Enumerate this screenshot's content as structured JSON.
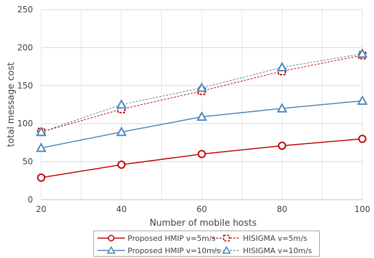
{
  "chart_data": {
    "type": "line",
    "title": "",
    "xlabel": "Number of mobile hosts",
    "ylabel": "total message cost",
    "x": [
      20,
      40,
      60,
      80,
      100
    ],
    "xticks": [
      "20",
      "40",
      "60",
      "80",
      "100"
    ],
    "yticks": [
      "0",
      "50",
      "100",
      "150",
      "200",
      "250"
    ],
    "xlim": [
      20,
      100
    ],
    "ylim": [
      0,
      250
    ],
    "grid": true,
    "legend_position": "bottom",
    "series": [
      {
        "name": "Proposed HMIP v=5m/s",
        "values": [
          29,
          46,
          60,
          71,
          80
        ],
        "color": "#c00000",
        "marker": "circle",
        "dash": false
      },
      {
        "name": "HISIGMA v=5m/s",
        "values": [
          89,
          119,
          143,
          169,
          190
        ],
        "color": "#c00000",
        "marker": "square",
        "dash": true
      },
      {
        "name": "Proposed HMIP v=10m/s",
        "values": [
          68,
          89,
          109,
          120,
          130
        ],
        "color": "#4a86b8",
        "marker": "triangle",
        "dash": false
      },
      {
        "name": "HISIGMA v=10m/s",
        "values": [
          89,
          125,
          147,
          174,
          192
        ],
        "color": "#4a86b8",
        "marker": "triangle",
        "dash": true
      }
    ]
  }
}
